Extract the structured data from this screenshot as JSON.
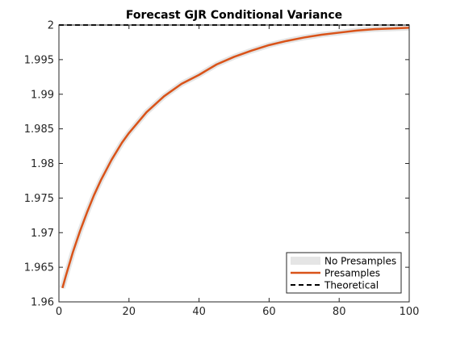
{
  "chart_data": {
    "type": "line",
    "title": "Forecast GJR Conditional Variance",
    "xlabel": "",
    "ylabel": "",
    "xlim": [
      0,
      100
    ],
    "ylim": [
      1.96,
      2.0
    ],
    "x_ticks": [
      0,
      20,
      40,
      60,
      80,
      100
    ],
    "y_ticks": [
      1.96,
      1.965,
      1.97,
      1.975,
      1.98,
      1.985,
      1.99,
      1.995,
      2.0
    ],
    "x_tick_labels": [
      "0",
      "20",
      "40",
      "60",
      "80",
      "100"
    ],
    "y_tick_labels": [
      "1.96",
      "1.965",
      "1.97",
      "1.975",
      "1.98",
      "1.985",
      "1.99",
      "1.995",
      "2"
    ],
    "grid": false,
    "legend_position": "bottom-right",
    "series": [
      {
        "name": "No Presamples",
        "style": "thick light gray line",
        "color": "#e5e5e5",
        "x": [
          1,
          2,
          3,
          4,
          5,
          6,
          8,
          10,
          12,
          15,
          18,
          20,
          25,
          30,
          35,
          40,
          45,
          50,
          55,
          60,
          65,
          70,
          75,
          80,
          85,
          90,
          95,
          100
        ],
        "y": [
          1.962,
          1.9638,
          1.9655,
          1.9672,
          1.9687,
          1.9702,
          1.9729,
          1.9754,
          1.9776,
          1.9805,
          1.983,
          1.9844,
          1.9874,
          1.9897,
          1.9915,
          1.9928,
          1.9943,
          1.9954,
          1.9963,
          1.9971,
          1.9977,
          1.9982,
          1.9986,
          1.9989,
          1.9992,
          1.9994,
          1.9995,
          1.9996
        ]
      },
      {
        "name": "Presamples",
        "style": "solid orange line",
        "color": "#d95319",
        "x": [
          1,
          2,
          3,
          4,
          5,
          6,
          8,
          10,
          12,
          15,
          18,
          20,
          25,
          30,
          35,
          40,
          45,
          50,
          55,
          60,
          65,
          70,
          75,
          80,
          85,
          90,
          95,
          100
        ],
        "y": [
          1.962,
          1.9638,
          1.9655,
          1.9672,
          1.9687,
          1.9702,
          1.9729,
          1.9754,
          1.9776,
          1.9805,
          1.983,
          1.9844,
          1.9874,
          1.9897,
          1.9915,
          1.9928,
          1.9943,
          1.9954,
          1.9963,
          1.9971,
          1.9977,
          1.9982,
          1.9986,
          1.9989,
          1.9992,
          1.9994,
          1.9995,
          1.9996
        ]
      },
      {
        "name": "Theoretical",
        "style": "dashed black line",
        "color": "#000000",
        "x": [
          0,
          100
        ],
        "y": [
          2.0,
          2.0
        ]
      }
    ]
  }
}
